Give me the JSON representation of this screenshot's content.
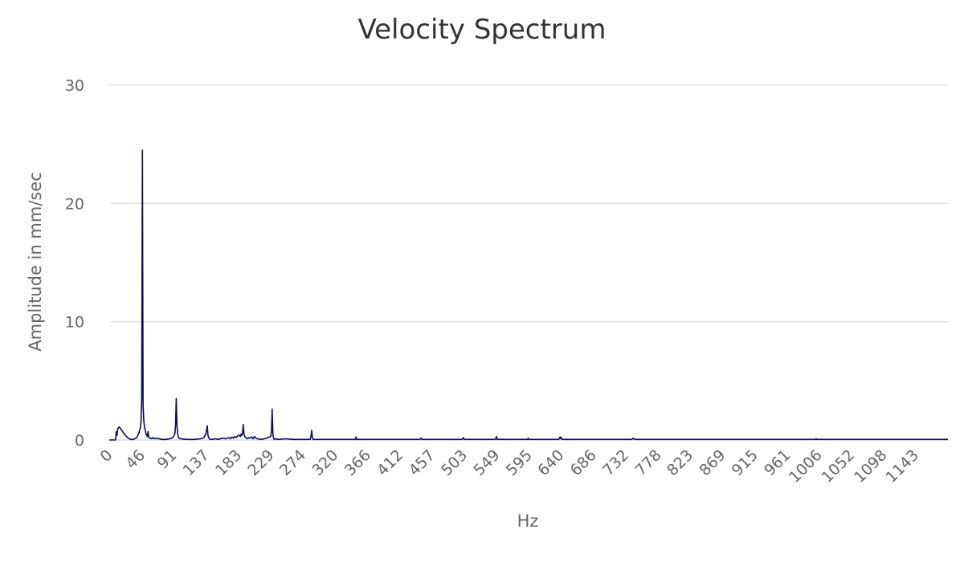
{
  "chart_data": {
    "type": "line",
    "title": "Velocity Spectrum",
    "xlabel": "Hz",
    "ylabel": "Amplitude in mm/sec",
    "xlim": [
      0,
      1189
    ],
    "ylim": [
      0,
      30
    ],
    "yticks": [
      0,
      10,
      20,
      30
    ],
    "xticks": [
      0,
      46,
      91,
      137,
      183,
      229,
      274,
      320,
      366,
      412,
      457,
      503,
      549,
      595,
      640,
      686,
      732,
      778,
      823,
      869,
      915,
      961,
      1006,
      1052,
      1098,
      1143
    ],
    "grid": true,
    "legend": "none",
    "color": "#0b0b5a",
    "series": [
      {
        "x": [
          0,
          5,
          9,
          10,
          11,
          12,
          13,
          14,
          15,
          16,
          18,
          20,
          23,
          26,
          30,
          34,
          36,
          38,
          40,
          42,
          44,
          45,
          46,
          47,
          48,
          49,
          50,
          51,
          52,
          53,
          54,
          55,
          56,
          58,
          60,
          62,
          64,
          66,
          68,
          70,
          72,
          75,
          80,
          86,
          90,
          93,
          94,
          95,
          96,
          97,
          98,
          99,
          101,
          104,
          110,
          120,
          130,
          134,
          137,
          139,
          140,
          141,
          142,
          143,
          146,
          150,
          155,
          160,
          165,
          170,
          172,
          174,
          176,
          178,
          180,
          183,
          186,
          187,
          188,
          189,
          190,
          191,
          192,
          194,
          196,
          198,
          200,
          202,
          204,
          206,
          208,
          210,
          215,
          220,
          225,
          229,
          230,
          231,
          232,
          233,
          234,
          236,
          240,
          250,
          260,
          270,
          285,
          286,
          287,
          288,
          289,
          300,
          320,
          340,
          349,
          350,
          351,
          352,
          370,
          390,
          400,
          420,
          440,
          441,
          442,
          443,
          460,
          490,
          500,
          501,
          502,
          503,
          530,
          547,
          548,
          549,
          550,
          551,
          560,
          590,
          593,
          594,
          595,
          620,
          637,
          638,
          639,
          640,
          641,
          642,
          660,
          700,
          720,
          740,
          741,
          742,
          743,
          745,
          780,
          820,
          860,
          900,
          960,
          1000,
          1001,
          1002,
          1003,
          1040,
          1100,
          1150,
          1189
        ],
        "y": [
          0,
          0,
          0,
          0.7,
          0.4,
          0.9,
          1.0,
          1.1,
          1.05,
          0.95,
          0.8,
          0.6,
          0.4,
          0.2,
          0.05,
          0.05,
          0.1,
          0.15,
          0.3,
          0.6,
          1.0,
          1.5,
          3.5,
          24.5,
          3.0,
          1.6,
          1.1,
          0.8,
          0.55,
          0.4,
          0.3,
          0.7,
          0.2,
          0.15,
          0.1,
          0.2,
          0.1,
          0.15,
          0.1,
          0.12,
          0.08,
          0.05,
          0.05,
          0.1,
          0.2,
          0.5,
          1.2,
          3.5,
          1.2,
          0.5,
          0.25,
          0.15,
          0.1,
          0.08,
          0.05,
          0.05,
          0.1,
          0.2,
          0.5,
          1.2,
          0.4,
          0.2,
          0.1,
          0.05,
          0.05,
          0.1,
          0.05,
          0.15,
          0.1,
          0.2,
          0.1,
          0.25,
          0.15,
          0.3,
          0.2,
          0.4,
          0.3,
          0.5,
          0.4,
          0.6,
          1.3,
          0.5,
          0.3,
          0.2,
          0.1,
          0.2,
          0.15,
          0.25,
          0.1,
          0.3,
          0.15,
          0.1,
          0.05,
          0.1,
          0.2,
          0.3,
          0.8,
          2.6,
          0.5,
          0.15,
          0.05,
          0.1,
          0.05,
          0.1,
          0.05,
          0.05,
          0.05,
          0.3,
          0.8,
          0.2,
          0.05,
          0.05,
          0.05,
          0.05,
          0.05,
          0.25,
          0.05,
          0.05,
          0.05,
          0.05,
          0.05,
          0.05,
          0.05,
          0.1,
          0.15,
          0.05,
          0.05,
          0.05,
          0.05,
          0.1,
          0.2,
          0.05,
          0.05,
          0.05,
          0.1,
          0.3,
          0.05,
          0.05,
          0.05,
          0.05,
          0.05,
          0.15,
          0.05,
          0.05,
          0.05,
          0.1,
          0.25,
          0.1,
          0.2,
          0.05,
          0.05,
          0.05,
          0.05,
          0.05,
          0.05,
          0.1,
          0.15,
          0.05,
          0.05,
          0.05,
          0.05,
          0.05,
          0.05,
          0.05,
          0.05,
          0.1,
          0.05,
          0.05,
          0.05,
          0.05,
          0.05
        ]
      }
    ]
  }
}
